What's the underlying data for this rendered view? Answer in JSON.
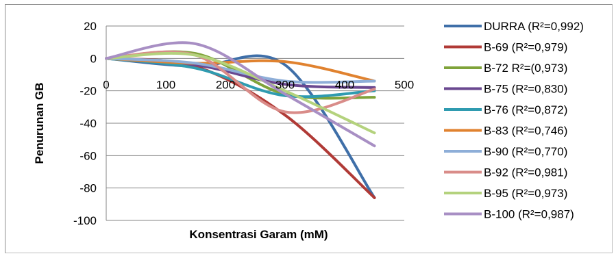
{
  "chart_data": {
    "type": "line",
    "title": "",
    "xlabel": "Konsentrasi Garam (mM)",
    "ylabel": "Penurunan GB",
    "xlim": [
      0,
      500
    ],
    "ylim": [
      -100,
      20
    ],
    "x_ticks": [
      "0",
      "100",
      "200",
      "300",
      "400",
      "500"
    ],
    "y_ticks": [
      "20",
      "0",
      "-20",
      "-40",
      "-60",
      "-80",
      "-100"
    ],
    "grid": "horizontal",
    "legend_position": "right",
    "x": [
      0,
      150,
      300,
      450
    ],
    "series": [
      {
        "name": "DURRA (R²=0,992)",
        "color": "#3f6fa8",
        "values": [
          0,
          -5,
          -4,
          -86
        ]
      },
      {
        "name": "B-69 (R²=0,979)",
        "color": "#b03a36",
        "values": [
          0,
          -5,
          -35,
          -86
        ]
      },
      {
        "name": "B-72 R²=(0,973)",
        "color": "#7fa33a",
        "values": [
          0,
          3,
          -22,
          -24
        ]
      },
      {
        "name": "B-75 (R²=0,830)",
        "color": "#6a4890",
        "values": [
          0,
          -4,
          -16,
          -18
        ]
      },
      {
        "name": "B-76 (R²=0,872)",
        "color": "#2f9bb0",
        "values": [
          0,
          -6,
          -23,
          -20
        ]
      },
      {
        "name": "B-83 (R²=0,746)",
        "color": "#e0822f",
        "values": [
          0,
          -3,
          -2,
          -14
        ]
      },
      {
        "name": "B-90 (R²=0,770)",
        "color": "#8eaed8",
        "values": [
          0,
          -3,
          -14,
          -14
        ]
      },
      {
        "name": "B-92 (R²=0,981)",
        "color": "#d98c89",
        "values": [
          0,
          2,
          -33,
          -19
        ]
      },
      {
        "name": "B-95 (R²=0,973)",
        "color": "#b4d27d",
        "values": [
          0,
          2,
          -20,
          -46
        ]
      },
      {
        "name": "B-100 (R²=0,987)",
        "color": "#a88fc4",
        "values": [
          0,
          9,
          -22,
          -54
        ]
      }
    ]
  }
}
